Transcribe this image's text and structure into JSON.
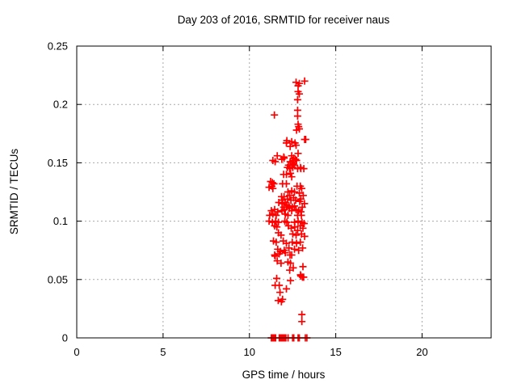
{
  "chart_data": {
    "type": "scatter",
    "title": "Day 203 of 2016, SRMTID for receiver naus",
    "xlabel": "GPS time / hours",
    "ylabel": "SRMTID / TECUs",
    "xlim": [
      0,
      24
    ],
    "ylim": [
      0,
      0.25
    ],
    "x_ticks": {
      "values": [
        0,
        5,
        10,
        15,
        20
      ],
      "labels": [
        "0",
        "5",
        "10",
        "15",
        "20"
      ]
    },
    "y_ticks": {
      "values": [
        0,
        0.05,
        0.1,
        0.15,
        0.2,
        0.25
      ],
      "labels": [
        "0",
        "0.05",
        "0.1",
        "0.15",
        "0.2",
        "0.25"
      ]
    },
    "grid": {
      "show": true,
      "color": "#a9a9a9",
      "style": "dotted"
    },
    "legend": "none",
    "border_color": "#000000",
    "series": [
      {
        "name": "SRMTID",
        "marker": "plus",
        "color": "#ff0000",
        "points": [
          [
            12.7,
            0.219
          ],
          [
            12.89,
            0.218
          ],
          [
            12.82,
            0.216
          ],
          [
            13.2,
            0.22
          ],
          [
            12.82,
            0.211
          ],
          [
            12.89,
            0.209
          ],
          [
            12.79,
            0.204
          ],
          [
            11.45,
            0.191
          ],
          [
            12.79,
            0.195
          ],
          [
            12.79,
            0.19
          ],
          [
            12.82,
            0.183
          ],
          [
            12.85,
            0.181
          ],
          [
            12.89,
            0.179
          ],
          [
            12.73,
            0.178
          ],
          [
            12.17,
            0.169
          ],
          [
            12.14,
            0.167
          ],
          [
            13.26,
            0.17
          ],
          [
            13.2,
            0.17
          ],
          [
            12.45,
            0.168
          ],
          [
            12.64,
            0.167
          ],
          [
            12.36,
            0.164
          ],
          [
            12.7,
            0.165
          ],
          [
            12.82,
            0.158
          ],
          [
            11.61,
            0.156
          ],
          [
            11.99,
            0.155
          ],
          [
            12.45,
            0.156
          ],
          [
            12.57,
            0.154
          ],
          [
            12.67,
            0.153
          ],
          [
            12.36,
            0.151
          ],
          [
            12.54,
            0.149
          ],
          [
            11.49,
            0.151
          ],
          [
            12.01,
            0.154
          ],
          [
            11.36,
            0.152
          ],
          [
            11.88,
            0.153
          ],
          [
            12.52,
            0.152
          ],
          [
            12.73,
            0.152
          ],
          [
            12.26,
            0.148
          ],
          [
            12.45,
            0.148
          ],
          [
            12.51,
            0.146
          ],
          [
            12.96,
            0.146
          ],
          [
            13.15,
            0.145
          ],
          [
            12.2,
            0.146
          ],
          [
            12.33,
            0.145
          ],
          [
            12.79,
            0.145
          ],
          [
            12.98,
            0.145
          ],
          [
            12.35,
            0.148
          ],
          [
            12.61,
            0.148
          ],
          [
            11.98,
            0.14
          ],
          [
            12.14,
            0.14
          ],
          [
            12.38,
            0.141
          ],
          [
            12.45,
            0.138
          ],
          [
            11.23,
            0.134
          ],
          [
            11.33,
            0.133
          ],
          [
            11.42,
            0.132
          ],
          [
            11.3,
            0.13
          ],
          [
            11.14,
            0.129
          ],
          [
            11.36,
            0.128
          ],
          [
            11.92,
            0.132
          ],
          [
            12.14,
            0.132
          ],
          [
            12.76,
            0.13
          ],
          [
            12.95,
            0.13
          ],
          [
            12.23,
            0.125
          ],
          [
            12.45,
            0.126
          ],
          [
            12.61,
            0.125
          ],
          [
            12.89,
            0.124
          ],
          [
            13.03,
            0.128
          ],
          [
            13.12,
            0.122
          ],
          [
            12.33,
            0.122
          ],
          [
            12.56,
            0.12
          ],
          [
            12.21,
            0.119
          ],
          [
            12.98,
            0.119
          ],
          [
            12.4,
            0.118
          ],
          [
            12.68,
            0.118
          ],
          [
            12.91,
            0.117
          ],
          [
            11.86,
            0.121
          ],
          [
            12.01,
            0.121
          ],
          [
            11.92,
            0.118
          ],
          [
            11.7,
            0.116
          ],
          [
            11.89,
            0.115
          ],
          [
            12.07,
            0.116
          ],
          [
            13.19,
            0.115
          ],
          [
            12.17,
            0.114
          ],
          [
            12.29,
            0.113
          ],
          [
            11.98,
            0.112
          ],
          [
            12.14,
            0.112
          ],
          [
            12.32,
            0.111
          ],
          [
            12.48,
            0.112
          ],
          [
            12.61,
            0.113
          ],
          [
            13.06,
            0.112
          ],
          [
            11.27,
            0.109
          ],
          [
            11.46,
            0.11
          ],
          [
            11.64,
            0.108
          ],
          [
            11.89,
            0.109
          ],
          [
            12.02,
            0.11
          ],
          [
            12.45,
            0.109
          ],
          [
            12.7,
            0.11
          ],
          [
            12.85,
            0.109
          ],
          [
            12.98,
            0.108
          ],
          [
            11.17,
            0.105
          ],
          [
            11.36,
            0.106
          ],
          [
            11.55,
            0.105
          ],
          [
            12.08,
            0.106
          ],
          [
            12.23,
            0.105
          ],
          [
            12.79,
            0.105
          ],
          [
            13.01,
            0.105
          ],
          [
            11.14,
            0.1
          ],
          [
            11.33,
            0.099
          ],
          [
            11.52,
            0.1
          ],
          [
            11.68,
            0.099
          ],
          [
            12.05,
            0.1
          ],
          [
            12.17,
            0.099
          ],
          [
            12.61,
            0.099
          ],
          [
            12.82,
            0.1
          ],
          [
            13.05,
            0.099
          ],
          [
            13.17,
            0.098
          ],
          [
            11.46,
            0.096
          ],
          [
            11.59,
            0.095
          ],
          [
            12.26,
            0.096
          ],
          [
            12.42,
            0.094
          ],
          [
            12.63,
            0.095
          ],
          [
            12.95,
            0.096
          ],
          [
            13.1,
            0.094
          ],
          [
            12.79,
            0.092
          ],
          [
            11.68,
            0.09
          ],
          [
            11.83,
            0.088
          ],
          [
            12.51,
            0.089
          ],
          [
            12.7,
            0.088
          ],
          [
            13.01,
            0.089
          ],
          [
            13.2,
            0.087
          ],
          [
            11.39,
            0.083
          ],
          [
            11.55,
            0.082
          ],
          [
            11.96,
            0.083
          ],
          [
            12.14,
            0.081
          ],
          [
            12.48,
            0.082
          ],
          [
            12.73,
            0.081
          ],
          [
            12.95,
            0.082
          ],
          [
            11.64,
            0.076
          ],
          [
            11.8,
            0.074
          ],
          [
            12.02,
            0.075
          ],
          [
            12.29,
            0.077
          ],
          [
            12.61,
            0.076
          ],
          [
            12.85,
            0.075
          ],
          [
            13.08,
            0.077
          ],
          [
            11.46,
            0.071
          ],
          [
            12.45,
            0.071
          ],
          [
            11.49,
            0.07
          ],
          [
            11.73,
            0.072
          ],
          [
            12.08,
            0.073
          ],
          [
            12.35,
            0.071
          ],
          [
            11.61,
            0.066
          ],
          [
            11.83,
            0.064
          ],
          [
            12.23,
            0.065
          ],
          [
            12.38,
            0.064
          ],
          [
            13.1,
            0.061
          ],
          [
            12.54,
            0.06
          ],
          [
            12.33,
            0.058
          ],
          [
            12.96,
            0.054
          ],
          [
            13.14,
            0.052
          ],
          [
            12.98,
            0.053
          ],
          [
            13.07,
            0.052
          ],
          [
            11.58,
            0.051
          ],
          [
            12.38,
            0.049
          ],
          [
            11.73,
            0.045
          ],
          [
            11.49,
            0.045
          ],
          [
            12.14,
            0.042
          ],
          [
            11.77,
            0.039
          ],
          [
            11.85,
            0.031
          ],
          [
            11.67,
            0.032
          ],
          [
            11.92,
            0.033
          ],
          [
            13.04,
            0.02
          ],
          [
            13.04,
            0.014
          ],
          [
            11.27,
            0
          ],
          [
            11.31,
            0
          ],
          [
            11.36,
            0
          ],
          [
            11.42,
            0
          ],
          [
            11.47,
            0
          ],
          [
            11.52,
            0
          ],
          [
            11.73,
            0
          ],
          [
            11.79,
            0
          ],
          [
            11.83,
            0
          ],
          [
            11.87,
            0
          ],
          [
            11.91,
            0
          ],
          [
            11.95,
            0
          ],
          [
            12.0,
            0
          ],
          [
            12.06,
            0
          ],
          [
            12.11,
            0
          ],
          [
            12.24,
            0
          ],
          [
            12.5,
            0
          ],
          [
            12.57,
            0
          ],
          [
            12.82,
            0
          ],
          [
            12.89,
            0
          ],
          [
            13.24,
            0
          ],
          [
            13.33,
            0
          ]
        ]
      }
    ]
  }
}
